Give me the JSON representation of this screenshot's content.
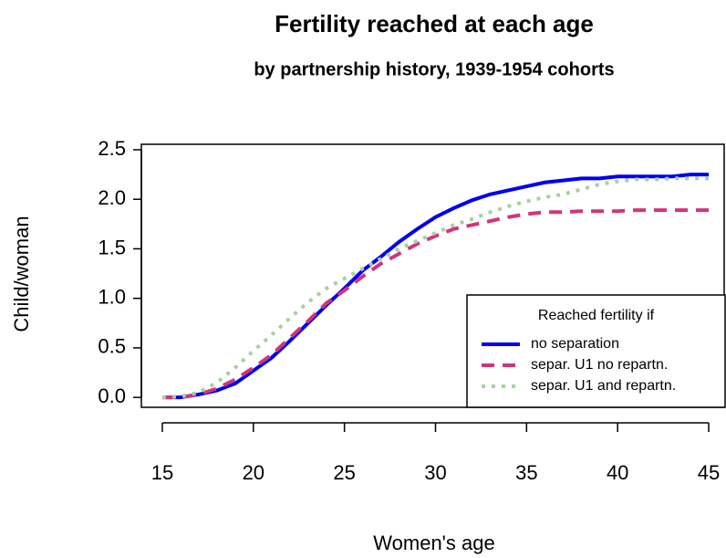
{
  "chart_data": {
    "type": "line",
    "title": "Fertility reached at each age",
    "subtitle": "by partnership history, 1939-1954 cohorts",
    "x_label": "Women's age",
    "y_label": "Child/woman",
    "x": [
      15,
      16,
      17,
      18,
      19,
      20,
      21,
      22,
      23,
      24,
      25,
      26,
      27,
      28,
      29,
      30,
      31,
      32,
      33,
      34,
      35,
      36,
      37,
      38,
      39,
      40,
      41,
      42,
      43,
      44,
      45
    ],
    "series": [
      {
        "name": "no separation",
        "color": "#0000ee",
        "dash": "solid",
        "values": [
          0,
          0,
          0.03,
          0.07,
          0.14,
          0.27,
          0.4,
          0.57,
          0.75,
          0.93,
          1.1,
          1.28,
          1.42,
          1.57,
          1.7,
          1.82,
          1.91,
          1.99,
          2.05,
          2.09,
          2.13,
          2.17,
          2.19,
          2.21,
          2.21,
          2.23,
          2.23,
          2.23,
          2.23,
          2.25,
          2.25
        ]
      },
      {
        "name": "separ. U1 no repartn.",
        "color": "#d0357a",
        "dash": "dashed",
        "values": [
          0,
          0,
          0.03,
          0.09,
          0.18,
          0.3,
          0.43,
          0.6,
          0.77,
          0.95,
          1.08,
          1.22,
          1.35,
          1.45,
          1.55,
          1.63,
          1.7,
          1.74,
          1.78,
          1.82,
          1.85,
          1.87,
          1.87,
          1.88,
          1.88,
          1.88,
          1.89,
          1.89,
          1.89,
          1.89,
          1.89
        ]
      },
      {
        "name": "separ. U1 and repartn.",
        "color": "#a8d0a0",
        "dash": "dotted",
        "values": [
          0,
          0.01,
          0.05,
          0.15,
          0.3,
          0.47,
          0.63,
          0.8,
          0.96,
          1.1,
          1.2,
          1.3,
          1.4,
          1.5,
          1.58,
          1.66,
          1.74,
          1.8,
          1.87,
          1.93,
          1.98,
          2.02,
          2.05,
          2.1,
          2.15,
          2.18,
          2.2,
          2.2,
          2.21,
          2.21,
          2.21
        ]
      }
    ],
    "legend_title": "Reached fertility if",
    "legend_position": "bottom-right",
    "xlim": [
      13.85,
      45.85
    ],
    "ylim": [
      -0.1,
      2.555
    ],
    "xticks": [
      15,
      20,
      25,
      30,
      35,
      40,
      45
    ],
    "yticks": [
      {
        "value": 0,
        "label": "0.0"
      },
      0.5,
      {
        "value": 1,
        "label": "1.0"
      },
      1.5,
      {
        "value": 2,
        "label": "2.0"
      },
      2.5
    ],
    "grid": false
  }
}
